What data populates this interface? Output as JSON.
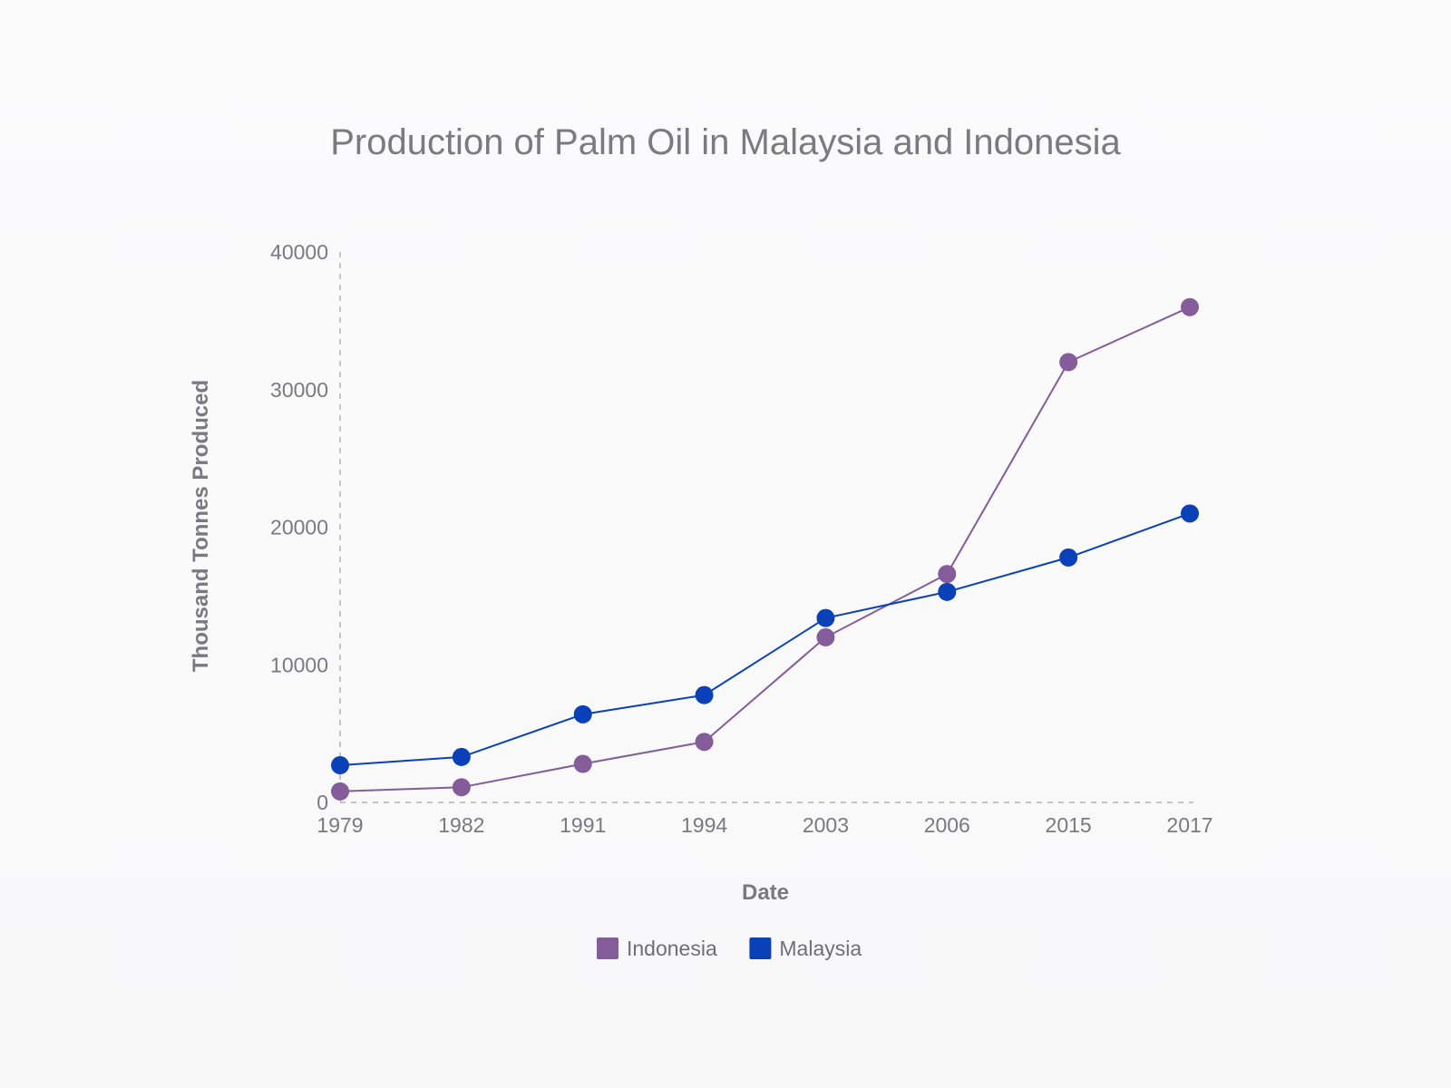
{
  "chart_data": {
    "type": "line",
    "title": "Production of Palm Oil in Malaysia and Indonesia",
    "xlabel": "Date",
    "ylabel": "Thousand Tonnes Produced",
    "categories": [
      "1979",
      "1982",
      "1991",
      "1994",
      "2003",
      "2006",
      "2015",
      "2017"
    ],
    "yticks": [
      "0",
      "10000",
      "20000",
      "30000",
      "40000"
    ],
    "ylim": [
      0,
      40000
    ],
    "grid": false,
    "legend_position": "bottom",
    "series": [
      {
        "name": "Indonesia",
        "color": "#845c9a",
        "values": [
          800,
          1100,
          2800,
          4400,
          12000,
          16600,
          32000,
          36000
        ]
      },
      {
        "name": "Malaysia",
        "color": "#0a41b8",
        "values": [
          2700,
          3300,
          6400,
          7800,
          13400,
          15300,
          17800,
          21000
        ]
      }
    ]
  }
}
